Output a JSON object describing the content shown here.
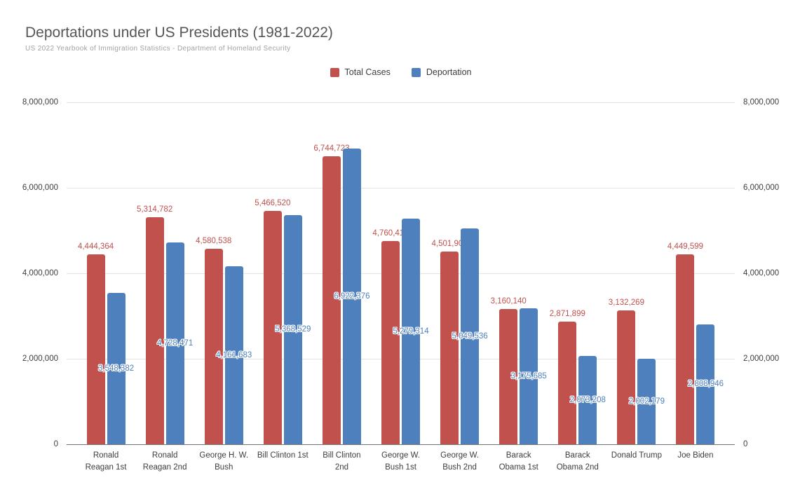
{
  "header": {
    "title": "Deportations under US Presidents (1981-2022)",
    "subtitle": "US 2022 Yearbook of Immigration Statistics - Department of Homeland Security"
  },
  "legend": {
    "position": "top-center",
    "items": [
      {
        "label": "Total Cases",
        "color": "#c0514d"
      },
      {
        "label": "Deportation",
        "color": "#4e80bd"
      }
    ]
  },
  "chart_data": {
    "type": "bar",
    "title": "Deportations under US Presidents (1981-2022)",
    "subtitle": "US 2022 Yearbook of Immigration Statistics - Department of Homeland Security",
    "categories": [
      "Ronald\nReagan 1st",
      "Ronald\nReagan 2nd",
      "George H. W.\nBush",
      "Bill Clinton 1st",
      "Bill Clinton\n2nd",
      "George W.\nBush 1st",
      "George W.\nBush 2nd",
      "Barack\nObama 1st",
      "Barack\nObama 2nd",
      "Donald Trump",
      "Joe Biden"
    ],
    "series": [
      {
        "name": "Total Cases",
        "color": "#c0514d",
        "label_placement": "above",
        "values": [
          4444364,
          5314782,
          4580538,
          5466520,
          6744723,
          4760410,
          4501905,
          3160140,
          2871899,
          3132269,
          4449599
        ]
      },
      {
        "name": "Deportation",
        "color": "#4e80bd",
        "label_placement": "inside",
        "values": [
          3548382,
          4728471,
          4161683,
          5368529,
          6922376,
          5279314,
          5049536,
          3175685,
          2073208,
          2002179,
          2808946
        ]
      }
    ],
    "xlabel": "",
    "ylabel": "",
    "ylim": [
      0,
      8000000
    ],
    "y_ticks_values": [
      8000000,
      6000000,
      4000000,
      2000000,
      0
    ],
    "y_ticks": [
      "8,000,000",
      "6,000,000",
      "4,000,000",
      "2,000,000",
      "0"
    ],
    "grid": "horizontal",
    "dual_y_axis": true,
    "legend_position": "top",
    "data_labels": true,
    "colors": {
      "gridline": "#e3e3e3",
      "axis_line": "#757575",
      "title": "#565656",
      "subtitle": "#a2a2a2",
      "tick_text": "#3d3d3d"
    }
  }
}
